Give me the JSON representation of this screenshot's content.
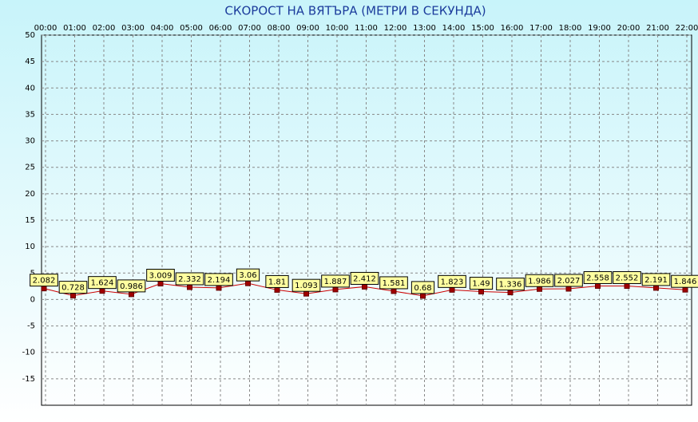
{
  "chart_data": {
    "type": "line",
    "title": "СКОРОСТ НА ВЯТЪРА (МЕТРИ В СЕКУНДА)",
    "categories": [
      "00:00",
      "01:00",
      "02:00",
      "03:00",
      "04:00",
      "05:00",
      "06:00",
      "07:00",
      "08:00",
      "09:00",
      "10:00",
      "11:00",
      "12:00",
      "13:00",
      "14:00",
      "15:00",
      "16:00",
      "17:00",
      "18:00",
      "19:00",
      "20:00",
      "21:00",
      "22:00"
    ],
    "values": [
      2.082,
      0.728,
      1.624,
      0.986,
      3.009,
      2.332,
      2.194,
      3.06,
      1.81,
      1.093,
      1.887,
      2.412,
      1.581,
      0.68,
      1.823,
      1.49,
      1.336,
      1.986,
      2.027,
      2.558,
      2.552,
      2.191,
      1.846
    ],
    "color": "#cc0000",
    "ylim": [
      -20,
      50
    ],
    "yticks": [
      50,
      45,
      40,
      35,
      30,
      25,
      20,
      15,
      10,
      5,
      0,
      -5,
      -10,
      -15
    ],
    "grid": true
  }
}
